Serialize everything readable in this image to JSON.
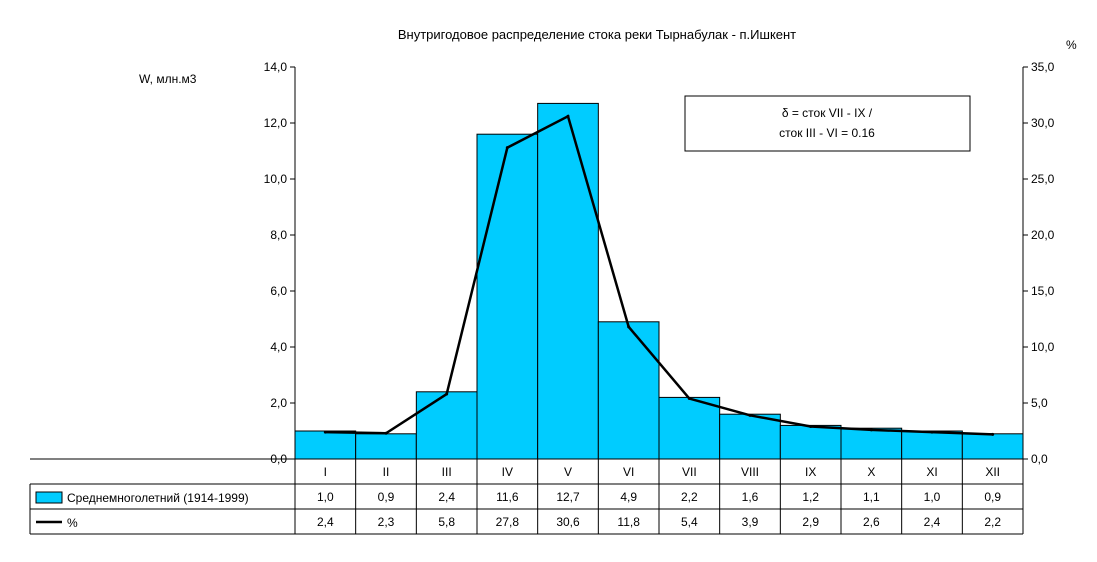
{
  "chart_data": {
    "type": "bar",
    "title": "Внутригодовое распределение стока реки Тырнабулак - п.Ишкент",
    "ylabel_left": "W, млн.м3",
    "ylabel_right": "%",
    "ylim_left": [
      0,
      14
    ],
    "ylim_right": [
      0,
      35
    ],
    "yticks_left": [
      "0,0",
      "2,0",
      "4,0",
      "6,0",
      "8,0",
      "10,0",
      "12,0",
      "14,0"
    ],
    "yticks_right": [
      "0,0",
      "5,0",
      "10,0",
      "15,0",
      "20,0",
      "25,0",
      "30,0",
      "35,0"
    ],
    "categories": [
      "I",
      "II",
      "III",
      "IV",
      "V",
      "VI",
      "VII",
      "VIII",
      "IX",
      "X",
      "XI",
      "XII"
    ],
    "grid": false,
    "legend": "data-table",
    "series": [
      {
        "name": "Среднемноголетний (1914-1999)",
        "type": "bar",
        "axis": "left",
        "color": "#00ccff",
        "values": [
          1.0,
          0.9,
          2.4,
          11.6,
          12.7,
          4.9,
          2.2,
          1.6,
          1.2,
          1.1,
          1.0,
          0.9
        ],
        "labels": [
          "1,0",
          "0,9",
          "2,4",
          "11,6",
          "12,7",
          "4,9",
          "2,2",
          "1,6",
          "1,2",
          "1,1",
          "1,0",
          "0,9"
        ]
      },
      {
        "name": "%",
        "type": "line",
        "axis": "right",
        "color": "#000000",
        "values": [
          2.4,
          2.3,
          5.8,
          27.8,
          30.6,
          11.8,
          5.4,
          3.9,
          2.9,
          2.6,
          2.4,
          2.2
        ],
        "labels": [
          "2,4",
          "2,3",
          "5,8",
          "27,8",
          "30,6",
          "11,8",
          "5,4",
          "3,9",
          "2,9",
          "2,6",
          "2,4",
          "2,2"
        ]
      }
    ],
    "annotation": {
      "line1": "δ = сток VII - IX /",
      "line2": "сток III - VI = 0.16"
    }
  }
}
